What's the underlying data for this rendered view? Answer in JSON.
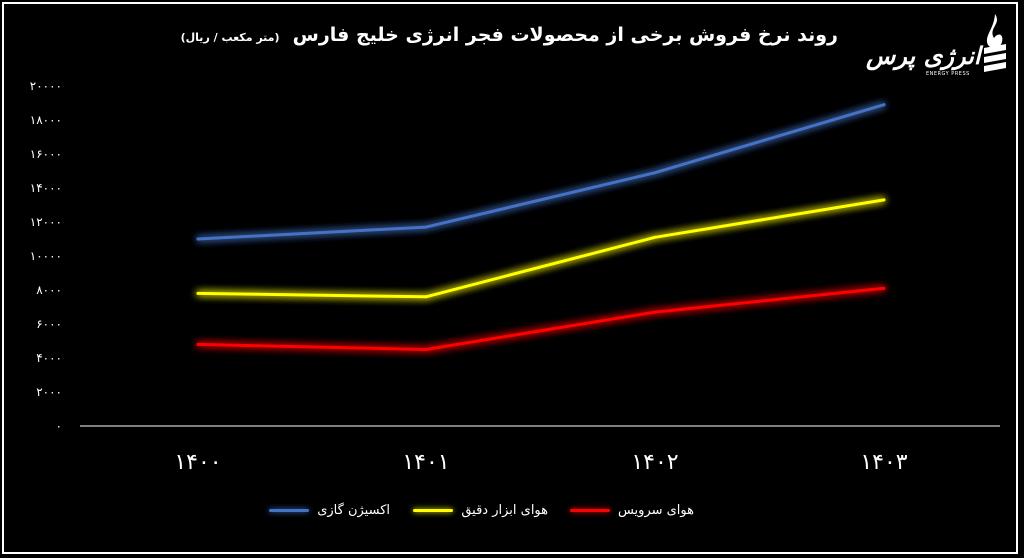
{
  "title": "روند نرخ فروش برخی از محصولات فجر انرژی خلیج فارس",
  "subtitle": "(متر مکعب / ریال)",
  "logo": {
    "name": "انرژی پرس",
    "subtitle": "ENERGY PRESS"
  },
  "chart_data": {
    "type": "line",
    "categories": [
      "۱۴۰۰",
      "۱۴۰۱",
      "۱۴۰۲",
      "۱۴۰۳"
    ],
    "ylim": [
      0,
      20000
    ],
    "yticks": [
      0,
      2000,
      4000,
      6000,
      8000,
      10000,
      12000,
      14000,
      16000,
      18000,
      20000
    ],
    "ytick_labels": [
      "۰",
      "۲۰۰۰",
      "۴۰۰۰",
      "۶۰۰۰",
      "۸۰۰۰",
      "۱۰۰۰۰",
      "۱۲۰۰۰",
      "۱۴۰۰۰",
      "۱۶۰۰۰",
      "۱۸۰۰۰",
      "۲۰۰۰۰"
    ],
    "grid": false,
    "legend_position": "bottom",
    "series": [
      {
        "name": "اکسیژن گازی",
        "color": "#4472c4",
        "values": [
          11000,
          11700,
          14900,
          18900
        ]
      },
      {
        "name": "هوای ابزار دقیق",
        "color": "#ffff00",
        "values": [
          7800,
          7600,
          11100,
          13300
        ]
      },
      {
        "name": "هوای سرویس",
        "color": "#ff0000",
        "values": [
          4800,
          4500,
          6700,
          8100
        ]
      }
    ]
  }
}
